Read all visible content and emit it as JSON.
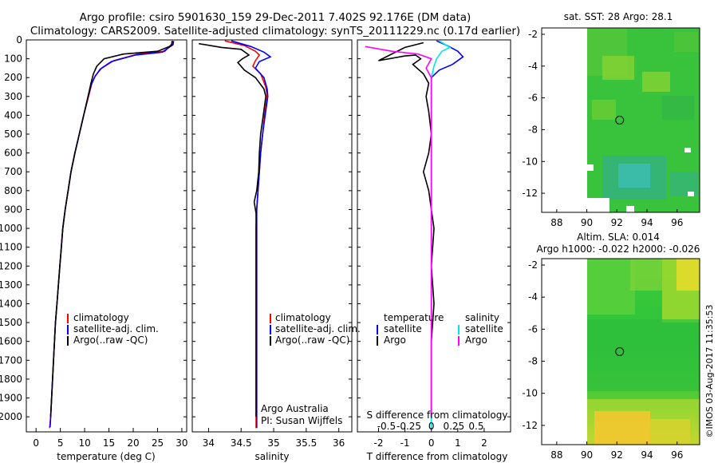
{
  "header": {
    "line1": "Argo profile: csiro 5901630_159 29-Dec-2011 7.402S 92.176E (DM data)",
    "line2": "Climatology: CARS2009. Satellite-adjusted climatology: synTS_20111229.nc (0.17d earlier)"
  },
  "colors": {
    "climatology": "#ff0000",
    "satellite": "#0000ff",
    "argo": "#000000",
    "salinity_satellite": "#00e5ee",
    "salinity_argo": "#ff00ff"
  },
  "side_text": "©IMOS 03-Aug-2017 11:35:53",
  "chart_data": [
    {
      "id": "temperature",
      "type": "line",
      "xlabel": "temperature (deg C)",
      "ylabel": "",
      "xlim": [
        -2,
        31
      ],
      "ylim": [
        2080,
        0
      ],
      "xticks": [
        "0",
        "5",
        "10",
        "15",
        "20",
        "25",
        "30"
      ],
      "xtick_values": [
        0,
        5,
        10,
        15,
        20,
        25,
        30
      ],
      "yticks": [
        "0",
        "100",
        "200",
        "300",
        "400",
        "500",
        "600",
        "700",
        "800",
        "900",
        "1000",
        "1100",
        "1200",
        "1300",
        "1400",
        "1500",
        "1600",
        "1700",
        "1800",
        "1900",
        "2000"
      ],
      "ytick_values": [
        0,
        100,
        200,
        300,
        400,
        500,
        600,
        700,
        800,
        900,
        1000,
        1100,
        1200,
        1300,
        1400,
        1500,
        1600,
        1700,
        1800,
        1900,
        2000
      ],
      "legend": [
        "climatology",
        "satellite-adj. clim.",
        "Argo(..raw -QC)"
      ],
      "series": [
        {
          "name": "climatology",
          "color": "#ff0000",
          "points": [
            [
              28.2,
              5
            ],
            [
              28.0,
              20
            ],
            [
              26.5,
              60
            ],
            [
              21,
              75
            ],
            [
              16,
              110
            ],
            [
              13.5,
              150
            ],
            [
              12.2,
              190
            ],
            [
              11.5,
              230
            ],
            [
              10.8,
              300
            ],
            [
              9.8,
              400
            ],
            [
              8.9,
              500
            ],
            [
              8.0,
              600
            ],
            [
              7.2,
              700
            ],
            [
              6.6,
              800
            ],
            [
              6.0,
              900
            ],
            [
              5.5,
              1000
            ],
            [
              5.2,
              1100
            ],
            [
              4.9,
              1200
            ],
            [
              4.6,
              1300
            ],
            [
              4.3,
              1400
            ],
            [
              4.0,
              1500
            ],
            [
              3.8,
              1600
            ],
            [
              3.6,
              1700
            ],
            [
              3.4,
              1800
            ],
            [
              3.2,
              1900
            ],
            [
              3.0,
              2000
            ],
            [
              2.8,
              2060
            ]
          ]
        },
        {
          "name": "satellite-adj. clim.",
          "color": "#0000ff",
          "points": [
            [
              28.3,
              5
            ],
            [
              28.2,
              25
            ],
            [
              26,
              65
            ],
            [
              20.5,
              80
            ],
            [
              15.5,
              115
            ],
            [
              13.2,
              155
            ],
            [
              12.1,
              195
            ],
            [
              11.4,
              235
            ],
            [
              10.7,
              300
            ],
            [
              9.8,
              400
            ],
            [
              8.9,
              500
            ],
            [
              8.0,
              600
            ],
            [
              7.2,
              700
            ],
            [
              6.6,
              800
            ],
            [
              6.0,
              900
            ],
            [
              5.5,
              1000
            ],
            [
              5.2,
              1100
            ],
            [
              4.9,
              1200
            ],
            [
              4.6,
              1300
            ],
            [
              4.3,
              1400
            ],
            [
              4.0,
              1500
            ],
            [
              3.8,
              1600
            ],
            [
              3.6,
              1700
            ],
            [
              3.4,
              1800
            ],
            [
              3.2,
              1900
            ],
            [
              3.0,
              2000
            ],
            [
              2.9,
              2055
            ]
          ]
        },
        {
          "name": "Argo(..raw -QC)",
          "color": "#000000",
          "points": [
            [
              28.0,
              5
            ],
            [
              27.9,
              30
            ],
            [
              25,
              60
            ],
            [
              18,
              75
            ],
            [
              14,
              100
            ],
            [
              12.5,
              140
            ],
            [
              11.8,
              180
            ],
            [
              11.3,
              230
            ],
            [
              10.7,
              300
            ],
            [
              9.8,
              400
            ],
            [
              8.9,
              500
            ],
            [
              8.0,
              600
            ],
            [
              7.2,
              700
            ],
            [
              6.6,
              800
            ],
            [
              6.0,
              900
            ],
            [
              5.5,
              1000
            ],
            [
              5.2,
              1100
            ],
            [
              4.9,
              1200
            ],
            [
              4.6,
              1300
            ],
            [
              4.3,
              1400
            ],
            [
              4.0,
              1500
            ],
            [
              3.8,
              1600
            ],
            [
              3.6,
              1700
            ],
            [
              3.4,
              1800
            ],
            [
              3.2,
              1900
            ],
            [
              3.0,
              2000
            ]
          ]
        }
      ]
    },
    {
      "id": "salinity",
      "type": "line",
      "xlabel": "salinity",
      "xlim": [
        33.75,
        36.2
      ],
      "ylim": [
        2080,
        0
      ],
      "xticks": [
        "34",
        "34.5",
        "35",
        "35.5",
        "36"
      ],
      "xtick_values": [
        34,
        34.5,
        35,
        35.5,
        36
      ],
      "legend": [
        "climatology",
        "satellite-adj. clim.",
        "Argo(..raw -QC)"
      ],
      "credits": [
        "Argo Australia",
        "PI: Susan Wijffels"
      ],
      "series": [
        {
          "name": "climatology",
          "color": "#ff0000",
          "points": [
            [
              34.25,
              5
            ],
            [
              34.55,
              30
            ],
            [
              34.72,
              60
            ],
            [
              34.78,
              80
            ],
            [
              34.72,
              110
            ],
            [
              34.68,
              140
            ],
            [
              34.8,
              180
            ],
            [
              34.88,
              250
            ],
            [
              34.9,
              300
            ],
            [
              34.86,
              400
            ],
            [
              34.83,
              500
            ],
            [
              34.8,
              600
            ],
            [
              34.78,
              700
            ],
            [
              34.76,
              800
            ],
            [
              34.74,
              900
            ],
            [
              34.73,
              1000
            ],
            [
              34.73,
              1200
            ],
            [
              34.73,
              1400
            ],
            [
              34.73,
              1600
            ],
            [
              34.73,
              1800
            ],
            [
              34.73,
              2000
            ],
            [
              34.73,
              2060
            ]
          ]
        },
        {
          "name": "satellite-adj. clim.",
          "color": "#0000ff",
          "points": [
            [
              34.35,
              5
            ],
            [
              34.65,
              35
            ],
            [
              34.85,
              65
            ],
            [
              34.95,
              90
            ],
            [
              34.78,
              115
            ],
            [
              34.72,
              150
            ],
            [
              34.85,
              200
            ],
            [
              34.9,
              260
            ],
            [
              34.91,
              300
            ],
            [
              34.87,
              400
            ],
            [
              34.83,
              500
            ],
            [
              34.8,
              600
            ],
            [
              34.78,
              700
            ],
            [
              34.76,
              800
            ],
            [
              34.74,
              900
            ],
            [
              34.74,
              1000
            ],
            [
              34.74,
              1200
            ],
            [
              34.74,
              1400
            ],
            [
              34.74,
              1600
            ],
            [
              34.74,
              1800
            ],
            [
              34.74,
              2000
            ],
            [
              34.74,
              2060
            ]
          ]
        },
        {
          "name": "Argo(..raw -QC)",
          "color": "#000000",
          "points": [
            [
              33.85,
              20
            ],
            [
              34.2,
              40
            ],
            [
              34.5,
              50
            ],
            [
              34.62,
              80
            ],
            [
              34.52,
              100
            ],
            [
              34.45,
              120
            ],
            [
              34.55,
              160
            ],
            [
              34.72,
              200
            ],
            [
              34.85,
              260
            ],
            [
              34.88,
              300
            ],
            [
              34.84,
              400
            ],
            [
              34.8,
              500
            ],
            [
              34.78,
              600
            ],
            [
              34.77,
              700
            ],
            [
              34.74,
              800
            ],
            [
              34.7,
              860
            ],
            [
              34.73,
              920
            ],
            [
              34.73,
              1000
            ],
            [
              34.73,
              1200
            ],
            [
              34.73,
              1400
            ],
            [
              34.73,
              1600
            ],
            [
              34.73,
              1800
            ],
            [
              34.73,
              2000
            ]
          ]
        }
      ]
    },
    {
      "id": "difference",
      "type": "line",
      "xlabel": "T difference from climatology",
      "top_label": "S difference from climatology",
      "xlim": [
        -2.8,
        3.0
      ],
      "ylim": [
        2080,
        0
      ],
      "xticks": [
        "-2",
        "-1",
        "0",
        "1",
        "2"
      ],
      "xtick_values": [
        -2,
        -1,
        0,
        1,
        2
      ],
      "top_ticks": [
        "-0.5",
        "-0.25",
        "0",
        "0.25",
        "0.5"
      ],
      "top_tick_values": [
        -1.7,
        -0.85,
        0,
        0.85,
        1.7
      ],
      "legend_groups": [
        {
          "title": "temperature",
          "entries": [
            "satellite",
            "Argo"
          ]
        },
        {
          "title": "salinity",
          "entries": [
            "satellite",
            "Argo"
          ]
        }
      ],
      "series": [
        {
          "name": "temperature satellite",
          "color": "#0000ff",
          "points": [
            [
              0.2,
              5
            ],
            [
              0.6,
              30
            ],
            [
              1.0,
              60
            ],
            [
              1.2,
              90
            ],
            [
              0.8,
              130
            ],
            [
              0.3,
              160
            ],
            [
              0.0,
              200
            ],
            [
              0.0,
              400
            ],
            [
              0.0,
              1000
            ],
            [
              0.0,
              2000
            ],
            [
              0.0,
              2060
            ]
          ]
        },
        {
          "name": "temperature Argo",
          "color": "#000000",
          "points": [
            [
              -0.3,
              15
            ],
            [
              -1.0,
              40
            ],
            [
              -2.0,
              110
            ],
            [
              -1.0,
              85
            ],
            [
              -0.6,
              80
            ],
            [
              -0.4,
              100
            ],
            [
              -0.7,
              130
            ],
            [
              -0.3,
              180
            ],
            [
              -0.1,
              230
            ],
            [
              -0.2,
              300
            ],
            [
              -0.1,
              380
            ],
            [
              0.0,
              500
            ],
            [
              -0.1,
              600
            ],
            [
              -0.3,
              700
            ],
            [
              -0.1,
              800
            ],
            [
              0.0,
              900
            ],
            [
              0.1,
              1000
            ],
            [
              0.0,
              1200
            ],
            [
              0.1,
              1400
            ],
            [
              0.0,
              1600
            ],
            [
              0.0,
              1800
            ],
            [
              0.0,
              2000
            ]
          ]
        },
        {
          "name": "salinity satellite",
          "color": "#00e5ee",
          "points": [
            [
              0.3,
              5
            ],
            [
              0.7,
              40
            ],
            [
              0.4,
              60
            ],
            [
              0.2,
              100
            ],
            [
              0.1,
              140
            ],
            [
              0.0,
              200
            ],
            [
              0.0,
              1000
            ],
            [
              0.0,
              2000
            ],
            [
              0.0,
              2060
            ]
          ]
        },
        {
          "name": "salinity Argo",
          "color": "#ff00ff",
          "points": [
            [
              -2.5,
              35
            ],
            [
              -1.5,
              60
            ],
            [
              -0.5,
              75
            ],
            [
              0.0,
              100
            ],
            [
              -0.2,
              150
            ],
            [
              0.0,
              200
            ],
            [
              0.0,
              400
            ],
            [
              0.0,
              600
            ],
            [
              0.0,
              900
            ],
            [
              0.0,
              1200
            ],
            [
              0.0,
              2000
            ]
          ]
        }
      ]
    },
    {
      "id": "sst_map",
      "type": "heatmap",
      "title": "sat. SST: 28 Argo: 28.1",
      "xlim": [
        87,
        97.5
      ],
      "ylim": [
        -13.2,
        -1.6
      ],
      "xticks": [
        "88",
        "90",
        "92",
        "94",
        "96"
      ],
      "xtick_values": [
        88,
        90,
        92,
        94,
        96
      ],
      "yticks": [
        "-2",
        "-4",
        "-6",
        "-8",
        "-10",
        "-12"
      ],
      "ytick_values": [
        -2,
        -4,
        -6,
        -8,
        -10,
        -12
      ],
      "marker": {
        "lon": 92.18,
        "lat": -7.4
      }
    },
    {
      "id": "sla_map",
      "type": "heatmap",
      "title": "Altim. SLA: 0.014",
      "subtitle": "Argo h1000: -0.022 h2000: -0.026",
      "xlim": [
        87,
        97.5
      ],
      "ylim": [
        -13.2,
        -1.6
      ],
      "xticks": [
        "88",
        "90",
        "92",
        "94",
        "96"
      ],
      "xtick_values": [
        88,
        90,
        92,
        94,
        96
      ],
      "yticks": [
        "-2",
        "-4",
        "-6",
        "-8",
        "-10",
        "-12"
      ],
      "ytick_values": [
        -2,
        -4,
        -6,
        -8,
        -10,
        -12
      ],
      "marker": {
        "lon": 92.18,
        "lat": -7.4
      }
    }
  ]
}
